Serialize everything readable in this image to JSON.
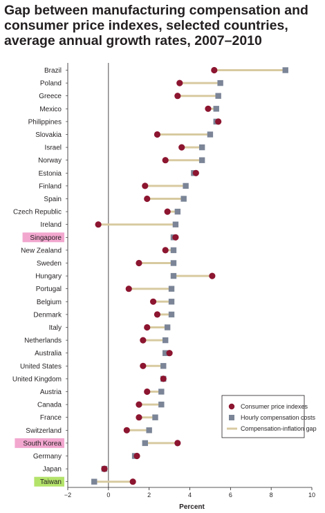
{
  "chart_data": {
    "type": "dumbbell",
    "title_lines": [
      "Gap between manufacturing compensation and",
      "consumer price indexes, selected countries,",
      "average annual growth rates, 2007–2010"
    ],
    "xlabel": "Percent",
    "xlim": [
      -2,
      10
    ],
    "xticks": [
      "−2",
      "0",
      "2",
      "4",
      "6",
      "8",
      "10"
    ],
    "xtick_values": [
      -2,
      0,
      2,
      4,
      6,
      8,
      10
    ],
    "legend_position": "bottom-right",
    "legend": {
      "cpi": "Consumer price indexes",
      "comp": "Hourly compensation costs",
      "gap": "Compensation-inflation gap"
    },
    "colors": {
      "cpi": "#8c1530",
      "comp": "#7b8597",
      "gap": "#d8caa0",
      "highlight_pink": "#f2a7cf",
      "highlight_green": "#b4e36a",
      "axis": "#231f20"
    },
    "series": [
      {
        "name": "Consumer price indexes",
        "key": "cpi"
      },
      {
        "name": "Hourly compensation costs",
        "key": "comp"
      }
    ],
    "categories": [
      "Brazil",
      "Poland",
      "Greece",
      "Mexico",
      "Philippines",
      "Slovakia",
      "Israel",
      "Norway",
      "Estonia",
      "Finland",
      "Spain",
      "Czech Republic",
      "Ireland",
      "Singapore",
      "New Zealand",
      "Sweden",
      "Hungary",
      "Portugal",
      "Belgium",
      "Denmark",
      "Italy",
      "Netherlands",
      "Australia",
      "United States",
      "United Kingdom",
      "Austria",
      "Canada",
      "France",
      "Switzerland",
      "South Korea",
      "Germany",
      "Japan",
      "Taiwan"
    ],
    "highlight": {
      "Singapore": "pink",
      "South Korea": "pink",
      "Taiwan": "green"
    },
    "cpi": [
      5.2,
      3.5,
      3.4,
      4.9,
      5.4,
      2.4,
      3.6,
      2.8,
      4.3,
      1.8,
      1.9,
      2.9,
      -0.5,
      3.3,
      2.8,
      1.5,
      5.1,
      1.0,
      2.2,
      2.4,
      1.9,
      1.7,
      3.0,
      1.7,
      2.7,
      1.9,
      1.5,
      1.5,
      0.9,
      3.4,
      1.4,
      -0.2,
      1.2
    ],
    "comp": [
      8.7,
      5.5,
      5.4,
      5.3,
      5.3,
      5.0,
      4.6,
      4.6,
      4.2,
      3.8,
      3.7,
      3.4,
      3.3,
      3.2,
      3.2,
      3.2,
      3.2,
      3.1,
      3.1,
      3.1,
      2.9,
      2.8,
      2.8,
      2.7,
      2.7,
      2.6,
      2.6,
      2.3,
      2.0,
      1.8,
      1.3,
      -0.2,
      -0.7
    ]
  }
}
